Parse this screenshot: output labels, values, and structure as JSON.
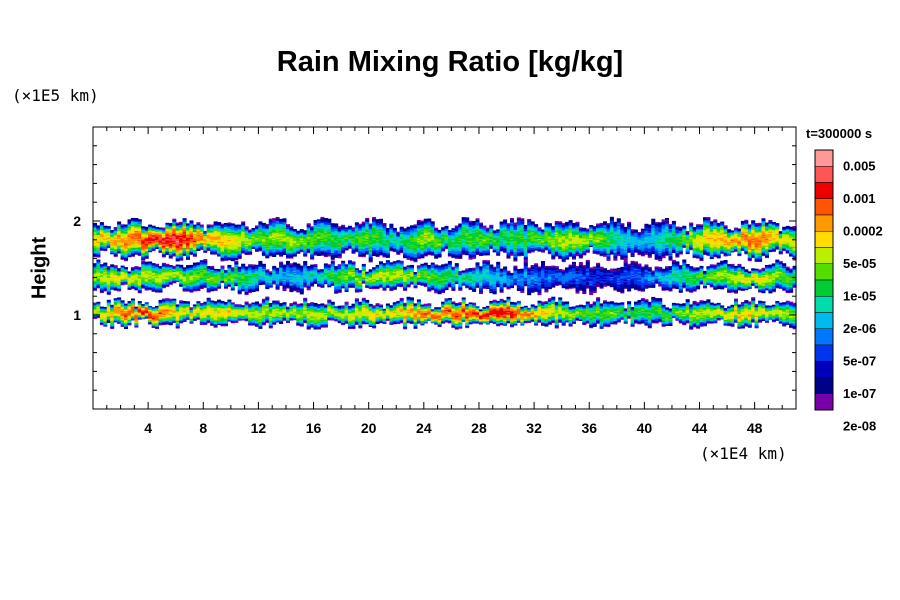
{
  "chart_data": {
    "type": "heatmap",
    "title": "Rain Mixing Ratio [kg/kg]",
    "xlabel": "",
    "ylabel": "Height",
    "x_unit": "(×1E4 km)",
    "y_unit": "(×1E5 km)",
    "time_label": "t=300000 s",
    "xlim": [
      0,
      51
    ],
    "ylim": [
      0,
      3
    ],
    "xticks": [
      "4",
      "8",
      "12",
      "16",
      "20",
      "24",
      "28",
      "32",
      "36",
      "40",
      "44",
      "48"
    ],
    "yticks": [
      "1",
      "2"
    ],
    "colorbar": {
      "labels": [
        "0.005",
        "0.001",
        "0.0002",
        "5e-05",
        "1e-05",
        "2e-06",
        "5e-07",
        "1e-07",
        "2e-08"
      ],
      "colors": [
        "#ff9999",
        "#ff5555",
        "#ee0000",
        "#ff5500",
        "#ff9900",
        "#ffdd00",
        "#bbee00",
        "#55dd00",
        "#00cc33",
        "#00ddaa",
        "#00bbee",
        "#0077ff",
        "#0033ee",
        "#0000bb",
        "#000088",
        "#7700aa"
      ]
    },
    "bands": [
      {
        "name": "upper",
        "height_range": [
          1.6,
          2.0
        ],
        "max_level_by_x": [
          [
            0,
            10
          ],
          [
            2,
            11
          ],
          [
            4,
            13
          ],
          [
            6,
            14
          ],
          [
            8,
            11
          ],
          [
            10,
            10
          ],
          [
            12,
            8
          ],
          [
            14,
            9
          ],
          [
            16,
            8
          ],
          [
            18,
            7
          ],
          [
            20,
            8
          ],
          [
            22,
            6
          ],
          [
            24,
            9
          ],
          [
            26,
            7
          ],
          [
            28,
            8
          ],
          [
            30,
            7
          ],
          [
            32,
            8
          ],
          [
            34,
            9
          ],
          [
            36,
            9
          ],
          [
            38,
            6
          ],
          [
            40,
            5
          ],
          [
            42,
            7
          ],
          [
            44,
            10
          ],
          [
            46,
            11
          ],
          [
            48,
            12
          ],
          [
            50,
            10
          ],
          [
            51,
            9
          ]
        ]
      },
      {
        "name": "middle",
        "height_range": [
          1.25,
          1.55
        ],
        "max_level_by_x": [
          [
            0,
            9
          ],
          [
            2,
            10
          ],
          [
            4,
            9
          ],
          [
            6,
            9
          ],
          [
            8,
            8
          ],
          [
            10,
            8
          ],
          [
            12,
            6
          ],
          [
            14,
            5
          ],
          [
            16,
            6
          ],
          [
            18,
            8
          ],
          [
            20,
            9
          ],
          [
            22,
            9
          ],
          [
            24,
            8
          ],
          [
            26,
            7
          ],
          [
            28,
            6
          ],
          [
            30,
            5
          ],
          [
            32,
            4
          ],
          [
            34,
            4
          ],
          [
            36,
            3
          ],
          [
            38,
            3
          ],
          [
            40,
            4
          ],
          [
            42,
            6
          ],
          [
            44,
            8
          ],
          [
            46,
            9
          ],
          [
            48,
            10
          ],
          [
            50,
            8
          ],
          [
            51,
            7
          ]
        ]
      },
      {
        "name": "lower",
        "height_range": [
          0.88,
          1.15
        ],
        "max_level_by_x": [
          [
            0,
            9
          ],
          [
            2,
            12
          ],
          [
            4,
            13
          ],
          [
            6,
            10
          ],
          [
            8,
            10
          ],
          [
            10,
            10
          ],
          [
            12,
            9
          ],
          [
            14,
            9
          ],
          [
            16,
            9
          ],
          [
            18,
            9
          ],
          [
            20,
            10
          ],
          [
            22,
            10
          ],
          [
            24,
            12
          ],
          [
            26,
            12
          ],
          [
            28,
            13
          ],
          [
            30,
            13
          ],
          [
            32,
            11
          ],
          [
            34,
            9
          ],
          [
            36,
            8
          ],
          [
            38,
            8
          ],
          [
            40,
            7
          ],
          [
            42,
            8
          ],
          [
            44,
            9
          ],
          [
            46,
            10
          ],
          [
            48,
            10
          ],
          [
            50,
            9
          ],
          [
            51,
            8
          ]
        ]
      }
    ]
  }
}
